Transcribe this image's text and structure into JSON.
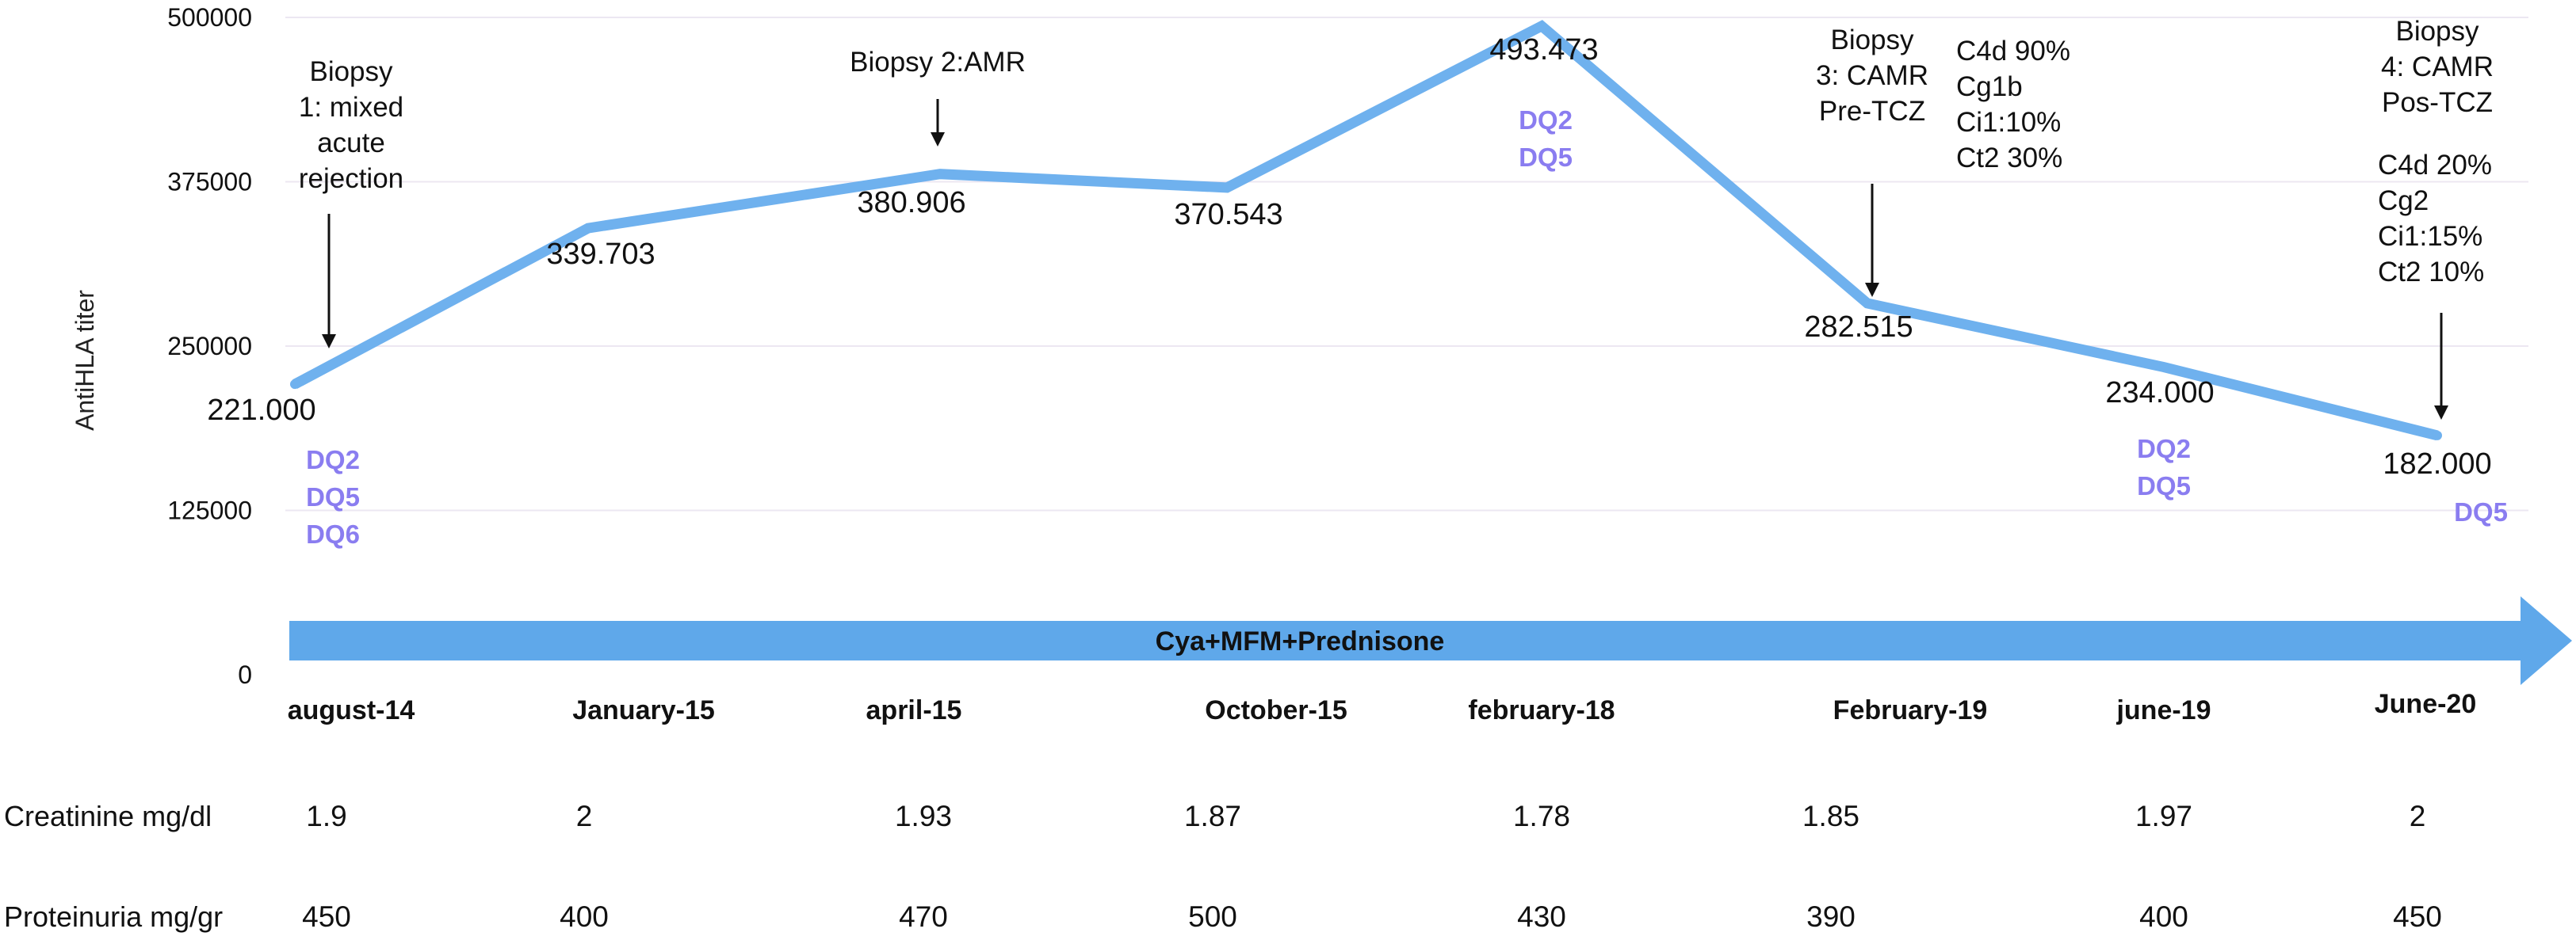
{
  "chart_data": {
    "type": "line",
    "ylabel": "AntiHLA titer",
    "ylim": [
      0,
      500000
    ],
    "yticks": [
      {
        "value": 0,
        "label": "0"
      },
      {
        "value": 125000,
        "label": "125000"
      },
      {
        "value": 250000,
        "label": "250000"
      },
      {
        "value": 375000,
        "label": "375000"
      },
      {
        "value": 500000,
        "label": "500000"
      }
    ],
    "grid": true,
    "categories": [
      "august-14",
      "January-15",
      "april-15",
      "October-15",
      "february-18",
      "February-19",
      "june-19",
      "June-20"
    ],
    "series": [
      {
        "values": [
          221000,
          339703,
          380906,
          370543,
          493473,
          282515,
          234000,
          182000
        ],
        "color": "#6fb1ee"
      }
    ],
    "data_labels": [
      "221.000",
      "339.703",
      "380.906",
      "370.543",
      "493.473",
      "282.515",
      "234.000",
      "182.000"
    ],
    "dq_labels": [
      [
        "DQ2",
        "DQ5",
        "DQ6"
      ],
      [],
      [],
      [],
      [
        "DQ2",
        "DQ5"
      ],
      [],
      [
        "DQ2",
        "DQ5"
      ],
      [
        "DQ5"
      ]
    ],
    "dq_color": "#8a7df0",
    "treatment_arrow": {
      "label": "Cya+MFM+Prednisone",
      "color": "#5fa8ea"
    },
    "annotations": [
      {
        "category_index": 0,
        "lines": [
          "Biopsy",
          "1: mixed",
          "acute",
          "rejection"
        ],
        "arrow": true
      },
      {
        "category_index": 2,
        "lines": [
          "Biopsy 2:AMR"
        ],
        "arrow": true
      },
      {
        "category_index": 5,
        "lines": [
          "Biopsy",
          "3: CAMR",
          "Pre-TCZ"
        ],
        "arrow": true
      },
      {
        "category_index": 5,
        "lines": [
          "C4d 90%",
          "Cg1b",
          "Ci1:10%",
          "Ct2 30%"
        ],
        "arrow": false
      },
      {
        "category_index": 7,
        "lines": [
          "Biopsy",
          "4: CAMR",
          "Pos-TCZ"
        ],
        "arrow": false
      },
      {
        "category_index": 7,
        "lines": [
          "C4d 20%",
          "Cg2",
          "Ci1:15%",
          "Ct2 10%"
        ],
        "arrow": true
      }
    ],
    "table_rows": [
      {
        "label": "Creatinine mg/dl",
        "values": [
          "1.9",
          "2",
          "1.93",
          "1.87",
          "1.78",
          "1.85",
          "1.97",
          "2"
        ]
      },
      {
        "label": "Proteinuria mg/gr",
        "values": [
          "450",
          "400",
          "470",
          "500",
          "430",
          "390",
          "400",
          "450"
        ]
      }
    ]
  }
}
